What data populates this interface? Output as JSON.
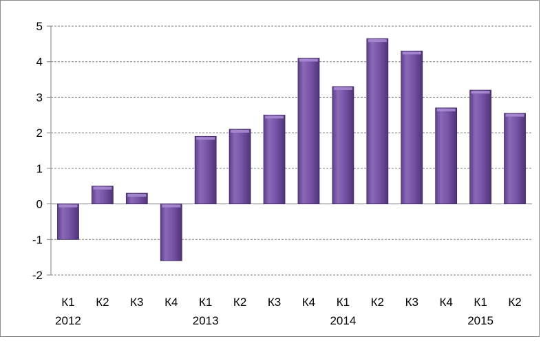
{
  "chart_data": {
    "type": "bar",
    "categories": [
      "К1",
      "К2",
      "К3",
      "К4",
      "К1",
      "К2",
      "К3",
      "К4",
      "К1",
      "К2",
      "К3",
      "К4",
      "К1",
      "К2"
    ],
    "years": [
      {
        "label": "2012",
        "start_index": 0
      },
      {
        "label": "2013",
        "start_index": 4
      },
      {
        "label": "2014",
        "start_index": 8
      },
      {
        "label": "2015",
        "start_index": 12
      }
    ],
    "values": [
      -1.0,
      0.5,
      0.3,
      -1.6,
      1.9,
      2.1,
      2.5,
      4.1,
      3.3,
      4.65,
      4.3,
      2.7,
      3.2,
      2.55
    ],
    "yticks": [
      "5",
      "4",
      "3",
      "2",
      "1",
      "0",
      "-1",
      "-2"
    ],
    "ylim": [
      -2,
      5
    ],
    "grid": true,
    "bar_color": "#7b5aa6",
    "bar_highlight": "#a78ad1"
  }
}
